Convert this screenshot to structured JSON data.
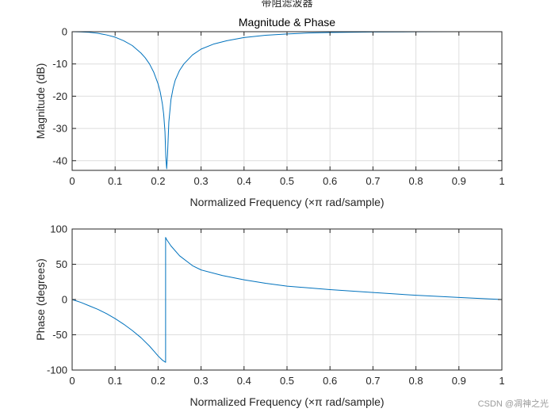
{
  "figure": {
    "suptitle": "带阻滤波器",
    "watermark": "CSDN @凋神之光",
    "colors": {
      "line": "#0072bd",
      "grid": "#dedede",
      "axis": "#262626",
      "background": "#ffffff"
    }
  },
  "chart_data": [
    {
      "type": "line",
      "title": "Magnitude & Phase",
      "xlabel": "Normalized Frequency  (×π rad/sample)",
      "ylabel": "Magnitude (dB)",
      "xlim": [
        0,
        1
      ],
      "ylim": [
        -43,
        0
      ],
      "grid": true,
      "xticks": [
        0,
        0.1,
        0.2,
        0.3,
        0.4,
        0.5,
        0.6,
        0.7,
        0.8,
        0.9,
        1
      ],
      "xtick_labels": [
        "0",
        "0.1",
        "0.2",
        "0.3",
        "0.4",
        "0.5",
        "0.6",
        "0.7",
        "0.8",
        "0.9",
        "1"
      ],
      "yticks": [
        0,
        -10,
        -20,
        -30,
        -40
      ],
      "ytick_labels": [
        "0",
        "-10",
        "-20",
        "-30",
        "-40"
      ],
      "series": [
        {
          "name": "magnitude",
          "x": [
            0,
            0.02,
            0.04,
            0.06,
            0.08,
            0.1,
            0.12,
            0.14,
            0.16,
            0.17,
            0.18,
            0.19,
            0.2,
            0.205,
            0.21,
            0.213,
            0.216,
            0.218,
            0.22,
            0.222,
            0.225,
            0.23,
            0.235,
            0.24,
            0.25,
            0.26,
            0.28,
            0.3,
            0.33,
            0.36,
            0.4,
            0.45,
            0.5,
            0.55,
            0.6,
            0.7,
            0.8,
            0.9,
            1.0
          ],
          "y": [
            0,
            -0.05,
            -0.2,
            -0.5,
            -1.0,
            -1.7,
            -2.8,
            -4.3,
            -6.6,
            -8.1,
            -10.0,
            -12.6,
            -16.2,
            -18.7,
            -22.4,
            -25.6,
            -31.0,
            -39.0,
            -42.5,
            -38.0,
            -28.0,
            -21.0,
            -17.5,
            -15.0,
            -12.0,
            -10.0,
            -7.2,
            -5.4,
            -3.8,
            -2.8,
            -1.8,
            -1.1,
            -0.7,
            -0.4,
            -0.25,
            -0.1,
            -0.04,
            -0.01,
            0
          ]
        }
      ]
    },
    {
      "type": "line",
      "title": "",
      "xlabel": "Normalized Frequency  (×π rad/sample)",
      "ylabel": "Phase (degrees)",
      "xlim": [
        0,
        1
      ],
      "ylim": [
        -100,
        100
      ],
      "grid": true,
      "xticks": [
        0,
        0.1,
        0.2,
        0.3,
        0.4,
        0.5,
        0.6,
        0.7,
        0.8,
        0.9,
        1
      ],
      "xtick_labels": [
        "0",
        "0.1",
        "0.2",
        "0.3",
        "0.4",
        "0.5",
        "0.6",
        "0.7",
        "0.8",
        "0.9",
        "1"
      ],
      "yticks": [
        100,
        50,
        0,
        -50,
        -100
      ],
      "ytick_labels": [
        "100",
        "50",
        "0",
        "-50",
        "-100"
      ],
      "series": [
        {
          "name": "phase",
          "x": [
            0,
            0.02,
            0.04,
            0.06,
            0.08,
            0.1,
            0.12,
            0.14,
            0.16,
            0.18,
            0.19,
            0.2,
            0.205,
            0.21,
            0.215,
            0.2175,
            0.2175,
            0.22,
            0.23,
            0.25,
            0.28,
            0.3,
            0.35,
            0.4,
            0.45,
            0.5,
            0.6,
            0.7,
            0.8,
            0.9,
            1.0
          ],
          "y": [
            0,
            -4,
            -9,
            -14,
            -20,
            -27,
            -35,
            -44,
            -54,
            -66,
            -73,
            -80,
            -83,
            -86,
            -88,
            -89,
            88,
            85,
            76,
            62,
            48,
            42,
            34,
            28,
            23,
            19,
            14,
            10,
            6,
            3,
            0
          ]
        }
      ]
    }
  ]
}
